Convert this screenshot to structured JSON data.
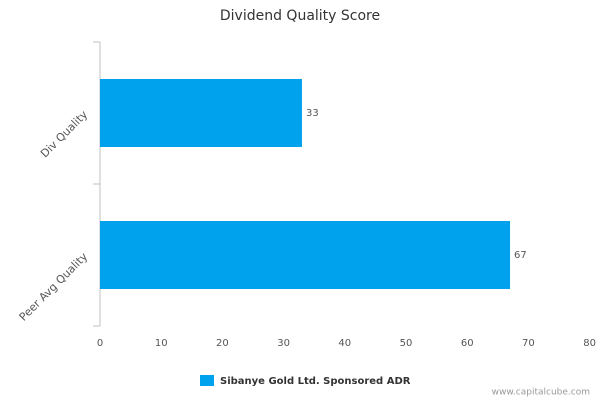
{
  "chart_data": {
    "type": "bar",
    "orientation": "horizontal",
    "title": "Dividend Quality Score",
    "categories": [
      "Div Quality",
      "Peer Avg Quality"
    ],
    "series": [
      {
        "name": "Sibanye Gold Ltd. Sponsored ADR",
        "color": "#00a2ed",
        "values": [
          33,
          67
        ]
      }
    ],
    "xlim": [
      0,
      80
    ],
    "xticks": [
      0,
      10,
      20,
      30,
      40,
      50,
      60,
      70,
      80
    ],
    "grid": false,
    "legend": "bottom",
    "source": "www.capitalcube.com"
  }
}
